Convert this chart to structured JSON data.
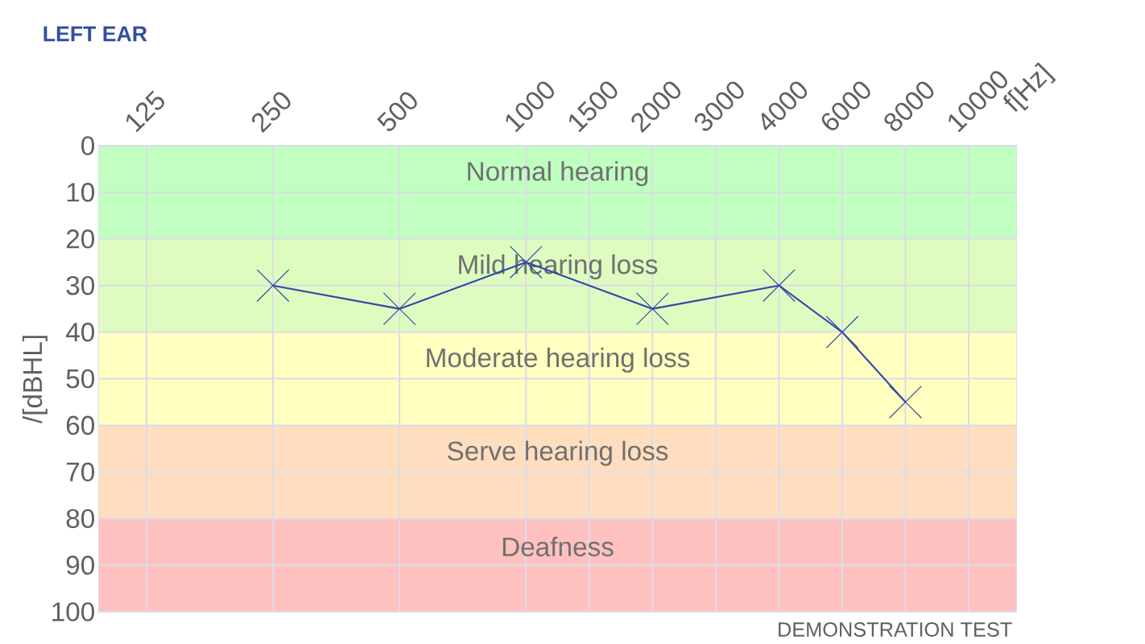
{
  "chart_data": {
    "type": "line",
    "title": "LEFT EAR",
    "xlabel": "f[Hz]",
    "ylabel": "/[dBHL]",
    "categories": [
      "125",
      null,
      "250",
      null,
      "500",
      null,
      "1000",
      "1500",
      "2000",
      "3000",
      "4000",
      "6000",
      "8000",
      "10000"
    ],
    "series": [
      {
        "values": [
          null,
          null,
          30,
          null,
          35,
          null,
          25,
          null,
          35,
          null,
          30,
          40,
          55,
          null
        ],
        "color": "#3048a8"
      }
    ],
    "ylim": [
      100,
      0
    ],
    "yticks": [
      0,
      10,
      20,
      30,
      40,
      50,
      60,
      70,
      80,
      90,
      100
    ],
    "grid": true,
    "marker": "cross",
    "line_style": "solid",
    "bands": [
      {
        "axis": "y",
        "from": 0,
        "to": 20,
        "label": "Normal hearing",
        "color": "#c0ffc0"
      },
      {
        "axis": "y",
        "from": 20,
        "to": 40,
        "label": "Mild hearing loss",
        "color": "#defcc0"
      },
      {
        "axis": "y",
        "from": 40,
        "to": 60,
        "label": "Moderate hearing loss",
        "color": "#ffffc0"
      },
      {
        "axis": "y",
        "from": 60,
        "to": 80,
        "label": "Serve hearing loss",
        "color": "#ffdec0"
      },
      {
        "axis": "y",
        "from": 80,
        "to": 100,
        "label": "Deafness",
        "color": "#ffc0c0"
      }
    ],
    "annotations": [
      "DEMONSTRATION TEST"
    ]
  }
}
